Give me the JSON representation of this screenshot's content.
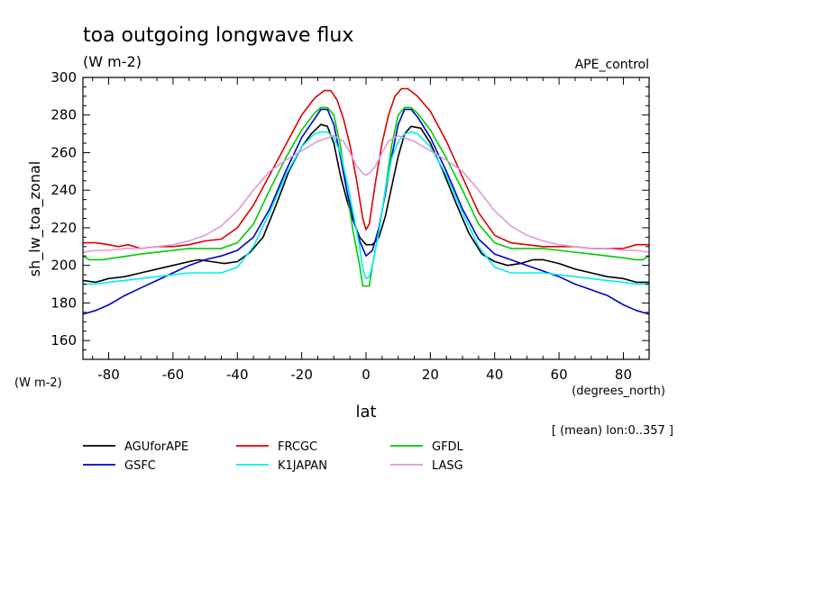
{
  "chart_data": {
    "type": "line",
    "title": "toa outgoing longwave flux",
    "subtitle": "(W m-2)",
    "experiment": "APE_control",
    "xlabel": "lat",
    "xunits": "(degrees_north)",
    "ylabel": "sh_lw_toa_zonal",
    "yunits": "(W m-2)",
    "footnote": "[ (mean) lon:0..357 ]",
    "xlim": [
      -88,
      88
    ],
    "ylim": [
      150,
      300
    ],
    "xticks": [
      -80,
      -60,
      -40,
      -20,
      0,
      20,
      40,
      60,
      80
    ],
    "yticks": [
      160,
      180,
      200,
      220,
      240,
      260,
      280,
      300
    ],
    "grid": false,
    "legend_position": "bottom",
    "series": [
      {
        "name": "AGUforAPE",
        "color": "#000000",
        "x": [
          -88,
          -84,
          -80,
          -75,
          -70,
          -65,
          -60,
          -55,
          -52,
          -48,
          -44,
          -40,
          -36,
          -32,
          -28,
          -24,
          -20,
          -17,
          -14,
          -12,
          -10,
          -8,
          -6,
          -4,
          -2,
          0,
          2,
          4,
          6,
          8,
          10,
          12,
          14,
          17,
          20,
          24,
          28,
          32,
          36,
          40,
          44,
          48,
          52,
          55,
          60,
          65,
          70,
          75,
          80,
          84,
          88
        ],
        "y": [
          192,
          191,
          193,
          194,
          196,
          198,
          200,
          202,
          203,
          202,
          201,
          202,
          207,
          215,
          232,
          250,
          263,
          270,
          275,
          274,
          265,
          248,
          235,
          224,
          215,
          211,
          211,
          215,
          226,
          242,
          258,
          270,
          274,
          273,
          265,
          250,
          233,
          217,
          206,
          202,
          200,
          201,
          203,
          203,
          201,
          198,
          196,
          194,
          193,
          191,
          191
        ]
      },
      {
        "name": "FRCGC",
        "color": "#dd0000",
        "x": [
          -88,
          -84,
          -80,
          -77,
          -74,
          -70,
          -65,
          -60,
          -55,
          -50,
          -45,
          -40,
          -35,
          -30,
          -25,
          -20,
          -16,
          -13,
          -11,
          -9,
          -7,
          -5,
          -3,
          -1,
          0,
          1,
          3,
          5,
          7,
          9,
          11,
          13,
          16,
          20,
          25,
          30,
          35,
          40,
          45,
          50,
          55,
          60,
          65,
          70,
          75,
          80,
          84,
          88
        ],
        "y": [
          212,
          212,
          211,
          210,
          211,
          209,
          210,
          210,
          211,
          213,
          214,
          220,
          232,
          248,
          264,
          280,
          289,
          293,
          293,
          288,
          278,
          264,
          246,
          225,
          219,
          222,
          245,
          265,
          280,
          290,
          294,
          294,
          290,
          282,
          266,
          247,
          228,
          216,
          212,
          211,
          210,
          210,
          210,
          209,
          209,
          209,
          211,
          211
        ]
      },
      {
        "name": "GFDL",
        "color": "#00cc00",
        "x": [
          -88,
          -86,
          -82,
          -78,
          -74,
          -70,
          -65,
          -60,
          -55,
          -50,
          -45,
          -40,
          -35,
          -30,
          -25,
          -20,
          -16,
          -14,
          -12,
          -10,
          -8,
          -6,
          -4,
          -2,
          -1,
          0,
          1,
          2,
          4,
          6,
          8,
          10,
          12,
          14,
          16,
          20,
          25,
          30,
          35,
          40,
          45,
          50,
          55,
          60,
          65,
          70,
          75,
          80,
          84,
          86,
          88
        ],
        "y": [
          205,
          203,
          203,
          204,
          205,
          206,
          207,
          208,
          209,
          209,
          209,
          212,
          222,
          240,
          257,
          272,
          281,
          284,
          284,
          280,
          264,
          240,
          218,
          200,
          189,
          189,
          189,
          200,
          218,
          240,
          264,
          280,
          284,
          284,
          281,
          272,
          257,
          240,
          222,
          212,
          209,
          209,
          209,
          208,
          207,
          206,
          205,
          204,
          203,
          203,
          205
        ]
      },
      {
        "name": "GSFC",
        "color": "#0000cc",
        "x": [
          -88,
          -84,
          -80,
          -75,
          -70,
          -65,
          -60,
          -55,
          -50,
          -45,
          -40,
          -35,
          -30,
          -25,
          -20,
          -16,
          -14,
          -12,
          -10,
          -8,
          -6,
          -4,
          -2,
          0,
          2,
          4,
          6,
          8,
          10,
          12,
          14,
          16,
          20,
          25,
          30,
          35,
          40,
          45,
          50,
          55,
          60,
          65,
          70,
          75,
          80,
          84,
          88
        ],
        "y": [
          174,
          176,
          179,
          184,
          188,
          192,
          196,
          200,
          203,
          205,
          208,
          215,
          230,
          250,
          268,
          278,
          283,
          283,
          275,
          258,
          240,
          225,
          213,
          205,
          208,
          220,
          238,
          258,
          275,
          283,
          283,
          279,
          268,
          250,
          230,
          214,
          206,
          203,
          200,
          197,
          194,
          190,
          187,
          184,
          179,
          176,
          174
        ]
      },
      {
        "name": "K1JAPAN",
        "color": "#00eeee",
        "x": [
          -88,
          -84,
          -80,
          -75,
          -70,
          -65,
          -60,
          -55,
          -50,
          -45,
          -40,
          -35,
          -30,
          -25,
          -20,
          -16,
          -14,
          -12,
          -10,
          -8,
          -6,
          -4,
          -2,
          -1,
          0,
          1,
          2,
          4,
          6,
          8,
          10,
          12,
          14,
          16,
          20,
          25,
          30,
          35,
          40,
          45,
          50,
          55,
          60,
          65,
          70,
          75,
          80,
          84,
          88
        ],
        "y": [
          190,
          190,
          191,
          192,
          193,
          194,
          195,
          196,
          196,
          196,
          199,
          210,
          228,
          248,
          263,
          270,
          271,
          271,
          268,
          260,
          245,
          228,
          210,
          198,
          193,
          194,
          200,
          218,
          240,
          257,
          266,
          270,
          271,
          270,
          263,
          248,
          228,
          210,
          199,
          196,
          196,
          196,
          195,
          194,
          193,
          192,
          191,
          190,
          190
        ]
      },
      {
        "name": "LASG",
        "color": "#dd99dd",
        "x": [
          -88,
          -84,
          -80,
          -75,
          -70,
          -65,
          -60,
          -55,
          -50,
          -45,
          -40,
          -35,
          -30,
          -25,
          -20,
          -15,
          -10,
          -7,
          -5,
          -3,
          -1,
          0,
          1,
          3,
          5,
          7,
          10,
          15,
          20,
          25,
          30,
          35,
          40,
          45,
          50,
          55,
          60,
          65,
          70,
          75,
          80,
          84,
          88
        ],
        "y": [
          207,
          208,
          208,
          209,
          209,
          210,
          211,
          213,
          216,
          221,
          229,
          240,
          250,
          256,
          261,
          266,
          269,
          266,
          260,
          253,
          249,
          248,
          249,
          253,
          260,
          266,
          269,
          266,
          261,
          256,
          250,
          240,
          229,
          221,
          216,
          213,
          211,
          210,
          209,
          209,
          208,
          208,
          207
        ]
      }
    ]
  }
}
